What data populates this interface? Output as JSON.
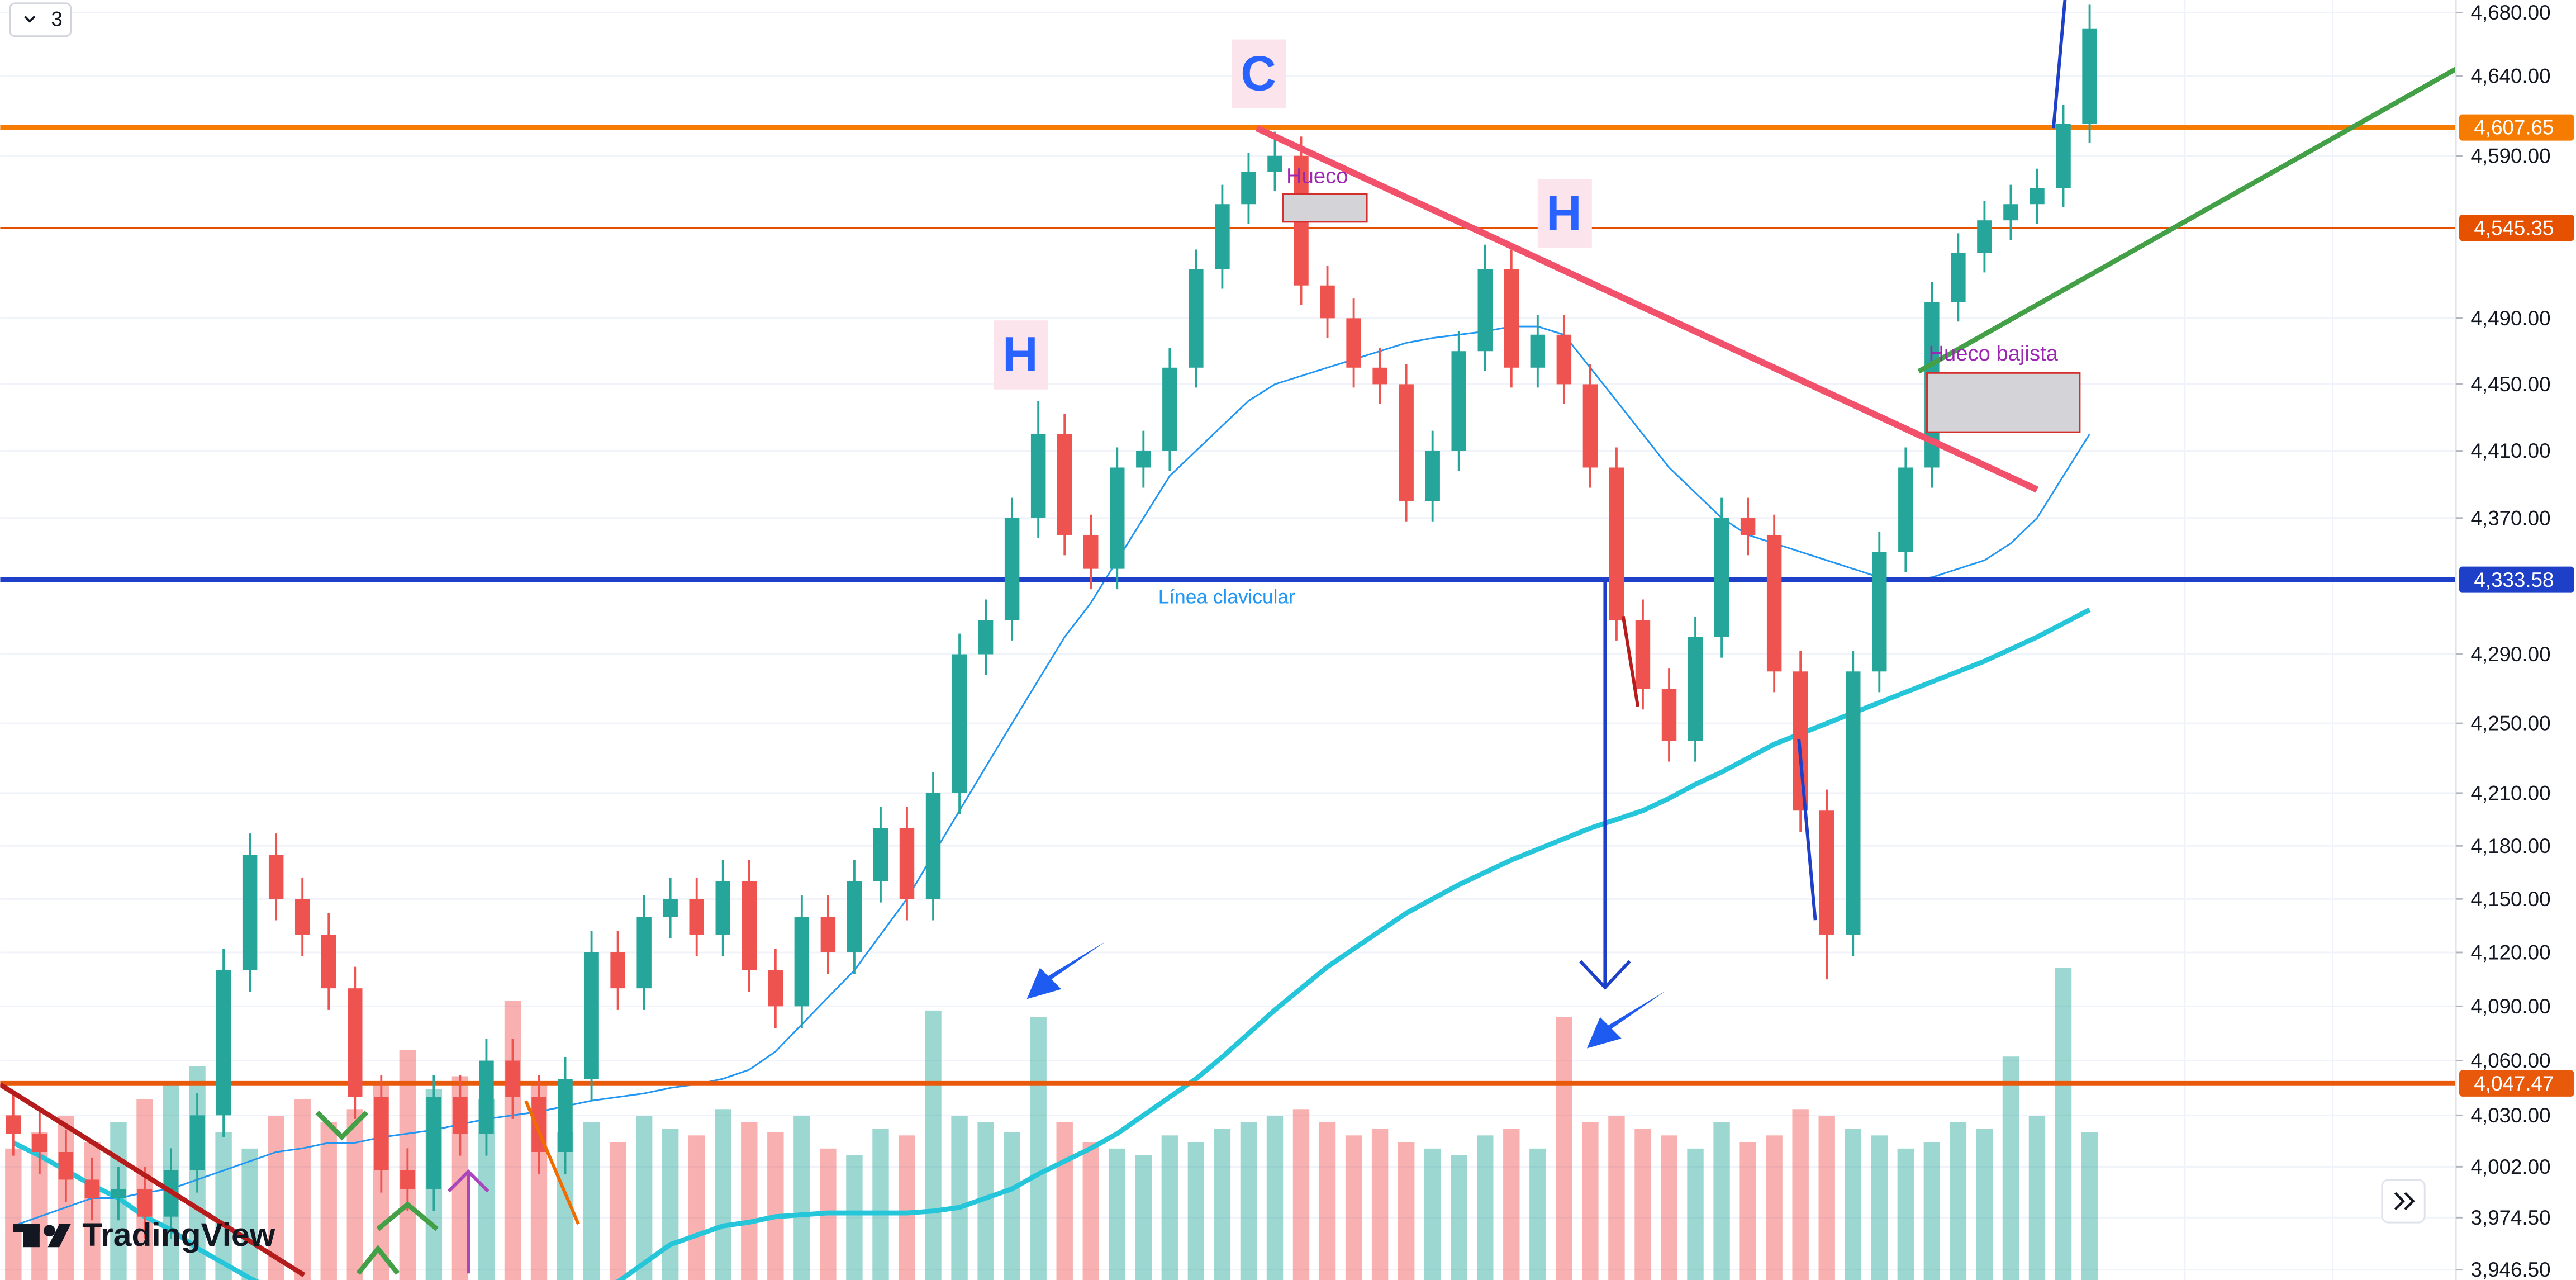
{
  "chart_data": {
    "type": "candlestick",
    "log_scale": true,
    "grid": true,
    "ylim": [
      3941,
      4688
    ],
    "yticks": [
      {
        "value": 4680,
        "label": "4,680.00"
      },
      {
        "value": 4640,
        "label": "4,640.00"
      },
      {
        "value": 4590,
        "label": "4,590.00"
      },
      {
        "value": 4490,
        "label": "4,490.00"
      },
      {
        "value": 4450,
        "label": "4,450.00"
      },
      {
        "value": 4410,
        "label": "4,410.00"
      },
      {
        "value": 4370,
        "label": "4,370.00"
      },
      {
        "value": 4290,
        "label": "4,290.00"
      },
      {
        "value": 4250,
        "label": "4,250.00"
      },
      {
        "value": 4210,
        "label": "4,210.00"
      },
      {
        "value": 4180,
        "label": "4,180.00"
      },
      {
        "value": 4150,
        "label": "4,150.00"
      },
      {
        "value": 4120,
        "label": "4,120.00"
      },
      {
        "value": 4090,
        "label": "4,090.00"
      },
      {
        "value": 4060,
        "label": "4,060.00"
      },
      {
        "value": 4030,
        "label": "4,030.00"
      },
      {
        "value": 4002,
        "label": "4,002.00"
      },
      {
        "value": 3974.5,
        "label": "3,974.50"
      },
      {
        "value": 3946.5,
        "label": "3,946.50"
      }
    ],
    "up_color": "#26a69a",
    "down_color": "#ef5350",
    "open": [
      4030,
      4020,
      4010,
      3995,
      3985,
      3990,
      3975,
      4000,
      4030,
      4110,
      4175,
      4150,
      4130,
      4100,
      4040,
      4000,
      3990,
      4040,
      4020,
      4060,
      4040,
      4010,
      4050,
      4120,
      4100,
      4140,
      4150,
      4130,
      4160,
      4110,
      4090,
      4140,
      4120,
      4160,
      4190,
      4150,
      4210,
      4290,
      4310,
      4370,
      4420,
      4360,
      4340,
      4400,
      4410,
      4460,
      4520,
      4560,
      4580,
      4590,
      4510,
      4490,
      4460,
      4450,
      4380,
      4410,
      4470,
      4520,
      4460,
      4480,
      4450,
      4400,
      4310,
      4270,
      4240,
      4300,
      4370,
      4360,
      4280,
      4200,
      4130,
      4280,
      4350,
      4400,
      4500,
      4530,
      4550,
      4560,
      4570,
      4610
    ],
    "high": [
      4042,
      4032,
      4022,
      4007,
      4002,
      4002,
      4012,
      4042,
      4122,
      4187,
      4187,
      4162,
      4142,
      4112,
      4052,
      4012,
      4052,
      4052,
      4072,
      4072,
      4052,
      4062,
      4132,
      4132,
      4152,
      4162,
      4162,
      4172,
      4172,
      4122,
      4152,
      4152,
      4172,
      4202,
      4202,
      4222,
      4302,
      4322,
      4382,
      4440,
      4432,
      4372,
      4412,
      4422,
      4472,
      4532,
      4572,
      4592,
      4605,
      4602,
      4522,
      4502,
      4472,
      4462,
      4422,
      4482,
      4535,
      4532,
      4492,
      4492,
      4462,
      4412,
      4322,
      4282,
      4312,
      4382,
      4382,
      4372,
      4292,
      4212,
      4292,
      4362,
      4412,
      4512,
      4542,
      4562,
      4572,
      4582,
      4622,
      4685
    ],
    "low": [
      4008,
      3998,
      3983,
      3973,
      3973,
      3963,
      3963,
      3988,
      4018,
      4098,
      4138,
      4118,
      4088,
      4028,
      3988,
      3978,
      3978,
      4008,
      4008,
      4028,
      3998,
      3998,
      4038,
      4088,
      4088,
      4128,
      4118,
      4118,
      4098,
      4078,
      4078,
      4108,
      4108,
      4148,
      4138,
      4138,
      4198,
      4278,
      4298,
      4358,
      4348,
      4328,
      4328,
      4388,
      4398,
      4448,
      4508,
      4548,
      4568,
      4498,
      4478,
      4448,
      4438,
      4368,
      4368,
      4398,
      4458,
      4448,
      4448,
      4438,
      4388,
      4298,
      4258,
      4228,
      4228,
      4288,
      4348,
      4268,
      4188,
      4105,
      4118,
      4268,
      4338,
      4388,
      4488,
      4518,
      4538,
      4548,
      4558,
      4598
    ],
    "close": [
      4020,
      4010,
      3995,
      3985,
      3990,
      3975,
      4000,
      4030,
      4110,
      4175,
      4150,
      4130,
      4100,
      4040,
      4000,
      3990,
      4040,
      4020,
      4060,
      4040,
      4010,
      4050,
      4120,
      4100,
      4140,
      4150,
      4130,
      4160,
      4110,
      4090,
      4140,
      4120,
      4160,
      4190,
      4150,
      4210,
      4290,
      4310,
      4370,
      4420,
      4360,
      4340,
      4400,
      4410,
      4460,
      4520,
      4560,
      4580,
      4590,
      4510,
      4490,
      4460,
      4450,
      4380,
      4410,
      4470,
      4520,
      4460,
      4480,
      4450,
      4400,
      4310,
      4270,
      4240,
      4300,
      4370,
      4360,
      4280,
      4200,
      4130,
      4280,
      4350,
      4400,
      4500,
      4530,
      4550,
      4560,
      4570,
      4610,
      4670
    ],
    "volume": [
      40,
      45,
      50,
      42,
      48,
      55,
      60,
      65,
      45,
      40,
      50,
      55,
      48,
      52,
      60,
      70,
      58,
      62,
      55,
      85,
      60,
      45,
      48,
      42,
      50,
      46,
      44,
      52,
      48,
      45,
      50,
      40,
      38,
      46,
      44,
      82,
      50,
      48,
      45,
      80,
      48,
      42,
      40,
      38,
      44,
      42,
      46,
      48,
      50,
      52,
      48,
      44,
      46,
      42,
      40,
      38,
      44,
      46,
      40,
      80,
      48,
      50,
      46,
      44,
      40,
      48,
      42,
      44,
      52,
      50,
      46,
      44,
      40,
      42,
      48,
      46,
      68,
      50,
      95,
      45
    ],
    "volume_ylim": [
      0,
      100
    ],
    "moving_averages": [
      {
        "color": "#2196f3",
        "width": 1,
        "values": [
          3970,
          3975,
          3980,
          3985,
          3985,
          3988,
          3990,
          3995,
          4000,
          4005,
          4010,
          4012,
          4015,
          4015,
          4018,
          4020,
          4022,
          4025,
          4028,
          4030,
          4032,
          4035,
          4038,
          4040,
          4042,
          4045,
          4047,
          4050,
          4055,
          4065,
          4080,
          4095,
          4110,
          4130,
          4150,
          4175,
          4200,
          4225,
          4250,
          4275,
          4300,
          4320,
          4345,
          4370,
          4395,
          4410,
          4425,
          4440,
          4450,
          4455,
          4460,
          4465,
          4470,
          4475,
          4478,
          4480,
          4482,
          4485,
          4485,
          4480,
          4460,
          4440,
          4420,
          4400,
          4385,
          4370,
          4360,
          4355,
          4350,
          4345,
          4340,
          4335,
          4333,
          4335,
          4340,
          4345,
          4355,
          4370,
          4395,
          4420
        ]
      },
      {
        "color": "#26c6da",
        "width": 3,
        "values": [
          4015,
          4008,
          4000,
          3992,
          3985,
          3975,
          3968,
          3958,
          3950,
          3942,
          3935,
          3930,
          3928,
          3926,
          3925,
          3925,
          3926,
          3927,
          3928,
          3930,
          3932,
          3935,
          3937,
          3940,
          3950,
          3960,
          3965,
          3970,
          3972,
          3975,
          3976,
          3977,
          3977,
          3977,
          3977,
          3978,
          3980,
          3985,
          3990,
          3998,
          4005,
          4012,
          4020,
          4030,
          4040,
          4050,
          4062,
          4075,
          4088,
          4100,
          4112,
          4122,
          4132,
          4142,
          4150,
          4158,
          4165,
          4172,
          4178,
          4184,
          4190,
          4195,
          4200,
          4207,
          4215,
          4222,
          4230,
          4238,
          4244,
          4250,
          4256,
          4262,
          4268,
          4274,
          4280,
          4286,
          4293,
          4300,
          4308,
          4316
        ]
      }
    ],
    "levels": [
      {
        "value": 4607.65,
        "label": "4,607.65",
        "color": "#f57c00"
      },
      {
        "value": 4545.35,
        "label": "4,545.35",
        "color": "#e65100"
      },
      {
        "value": 4333.58,
        "label": "4,333.58",
        "color": "#1e40c8"
      },
      {
        "value": 4047.47,
        "label": "4,047.47",
        "color": "#e8590c"
      }
    ],
    "annotations": [
      "C",
      "H",
      "H",
      "Hueco",
      "Hueco bajista",
      "Línea clavicular"
    ],
    "logo": "TradingView",
    "interval_badge": "3"
  }
}
